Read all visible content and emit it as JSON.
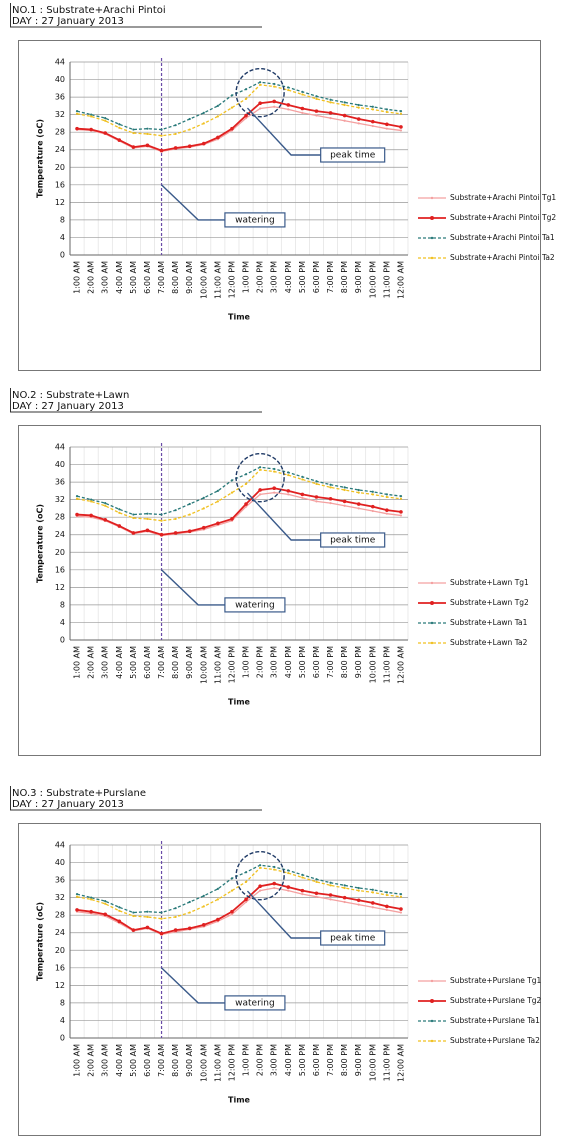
{
  "chart_data": [
    {
      "type": "line",
      "title": "NO.1 : Substrate+Arachi Pintoi",
      "subtitle": "DAY : 27 January 2013",
      "xlabel": "Time",
      "ylabel": "Temperature (oC)",
      "categories": [
        "1:00 AM",
        "2:00 AM",
        "3:00 AM",
        "4:00 AM",
        "5:00 AM",
        "6:00 AM",
        "7:00 AM",
        "8:00 AM",
        "9:00 AM",
        "10:00 AM",
        "11:00 AM",
        "12:00 PM",
        "1:00 PM",
        "2:00 PM",
        "3:00 PM",
        "4:00 PM",
        "5:00 PM",
        "6:00 PM",
        "7:00 PM",
        "8:00 PM",
        "9:00 PM",
        "10:00 PM",
        "11:00 PM",
        "12:00 AM"
      ],
      "series": [
        {
          "name": "Substrate+Arachi Pintoi Tg1",
          "color": "#f4a0a0",
          "style": "solid",
          "values": [
            28.6,
            28.4,
            27.6,
            26,
            24.4,
            24.8,
            23.6,
            24.2,
            24.6,
            25.2,
            26.4,
            28.4,
            31.2,
            33.4,
            33.8,
            33.2,
            32.4,
            31.8,
            31.2,
            30.6,
            30,
            29.4,
            28.8,
            28.4
          ]
        },
        {
          "name": "Substrate+Arachi Pintoi Tg2",
          "color": "#e02020",
          "style": "solid",
          "values": [
            28.8,
            28.6,
            27.8,
            26.2,
            24.6,
            25,
            23.8,
            24.4,
            24.8,
            25.4,
            26.8,
            28.8,
            31.8,
            34.6,
            35,
            34.2,
            33.4,
            32.8,
            32.4,
            31.8,
            31,
            30.4,
            29.8,
            29.2
          ]
        },
        {
          "name": "Substrate+Arachi Pintoi Ta1",
          "color": "#2a7a7a",
          "style": "dashed",
          "values": [
            32.8,
            32,
            31.2,
            29.8,
            28.6,
            28.8,
            28.6,
            29.6,
            31,
            32.4,
            34,
            36.4,
            37.8,
            39.4,
            39,
            38.2,
            37.2,
            36.2,
            35.4,
            34.8,
            34.2,
            33.8,
            33.2,
            32.8
          ]
        },
        {
          "name": "Substrate+Arachi Pintoi Ta2",
          "color": "#f0c020",
          "style": "dashed",
          "values": [
            32.2,
            31.6,
            30.6,
            29,
            27.8,
            27.6,
            27.2,
            27.6,
            28.6,
            30,
            31.6,
            33.6,
            35.6,
            38.8,
            38.4,
            37.6,
            36.6,
            35.6,
            34.8,
            34.2,
            33.6,
            33.2,
            32.6,
            32.2
          ]
        }
      ],
      "ylim": [
        0,
        44
      ],
      "yticks": [
        0,
        4,
        8,
        12,
        16,
        20,
        24,
        28,
        32,
        36,
        40,
        44
      ],
      "grid": true,
      "legend": "right",
      "annotations": [
        "peak time",
        "watering"
      ]
    },
    {
      "type": "line",
      "title": "NO.2 : Substrate+Lawn",
      "subtitle": "DAY : 27 January 2013",
      "xlabel": "Time",
      "ylabel": "Temperature (oC)",
      "categories": [
        "1:00 AM",
        "2:00 AM",
        "3:00 AM",
        "4:00 AM",
        "5:00 AM",
        "6:00 AM",
        "7:00 AM",
        "8:00 AM",
        "9:00 AM",
        "10:00 AM",
        "11:00 AM",
        "12:00 PM",
        "1:00 PM",
        "2:00 PM",
        "3:00 PM",
        "4:00 PM",
        "5:00 PM",
        "6:00 PM",
        "7:00 PM",
        "8:00 PM",
        "9:00 PM",
        "10:00 PM",
        "11:00 PM",
        "12:00 AM"
      ],
      "series": [
        {
          "name": "Substrate+Lawn Tg1",
          "color": "#f4a0a0",
          "style": "solid",
          "values": [
            28.2,
            28,
            27.2,
            25.8,
            24.2,
            24.8,
            23.8,
            24.2,
            24.6,
            25.2,
            26.2,
            27.2,
            30.4,
            33.2,
            33.6,
            33.2,
            32.4,
            31.6,
            31.2,
            30.6,
            30,
            29.4,
            28.8,
            28.4
          ]
        },
        {
          "name": "Substrate+Lawn Tg2",
          "color": "#e02020",
          "style": "solid",
          "values": [
            28.6,
            28.4,
            27.4,
            26,
            24.4,
            25,
            24,
            24.4,
            24.8,
            25.6,
            26.6,
            27.6,
            31,
            34.2,
            34.6,
            34,
            33.2,
            32.6,
            32.2,
            31.6,
            31,
            30.4,
            29.6,
            29.2
          ]
        },
        {
          "name": "Substrate+Lawn Ta1",
          "color": "#2a7a7a",
          "style": "dashed",
          "values": [
            32.8,
            32,
            31.2,
            29.8,
            28.6,
            28.8,
            28.6,
            29.6,
            31,
            32.4,
            34,
            36.4,
            37.8,
            39.4,
            39,
            38.2,
            37.2,
            36.2,
            35.4,
            34.8,
            34.2,
            33.8,
            33.2,
            32.8
          ]
        },
        {
          "name": "Substrate+Lawn Ta2",
          "color": "#f0c020",
          "style": "dashed",
          "values": [
            32.2,
            31.6,
            30.6,
            29,
            27.8,
            27.6,
            27.2,
            27.6,
            28.6,
            30,
            31.6,
            33.6,
            35.6,
            38.8,
            38.4,
            37.6,
            36.6,
            35.6,
            34.8,
            34.2,
            33.6,
            33.2,
            32.6,
            32.2
          ]
        }
      ],
      "ylim": [
        0,
        44
      ],
      "yticks": [
        0,
        4,
        8,
        12,
        16,
        20,
        24,
        28,
        32,
        36,
        40,
        44
      ],
      "grid": true,
      "legend": "right",
      "annotations": [
        "peak time",
        "watering"
      ]
    },
    {
      "type": "line",
      "title": "NO.3 : Substrate+Purslane",
      "subtitle": "DAY : 27 January 2013",
      "xlabel": "Time",
      "ylabel": "Temperature (oC)",
      "categories": [
        "1:00 AM",
        "2:00 AM",
        "3:00 AM",
        "4:00 AM",
        "5:00 AM",
        "6:00 AM",
        "7:00 AM",
        "8:00 AM",
        "9:00 AM",
        "10:00 AM",
        "11:00 AM",
        "12:00 PM",
        "1:00 PM",
        "2:00 PM",
        "3:00 PM",
        "4:00 PM",
        "5:00 PM",
        "6:00 PM",
        "7:00 PM",
        "8:00 PM",
        "9:00 PM",
        "10:00 PM",
        "11:00 PM",
        "12:00 AM"
      ],
      "series": [
        {
          "name": "Substrate+Purslane Tg1",
          "color": "#f4a0a0",
          "style": "solid",
          "values": [
            28.8,
            28.4,
            27.8,
            26.2,
            24.4,
            25,
            23.6,
            24.2,
            24.8,
            25.4,
            26.6,
            28.2,
            31,
            33.6,
            34.2,
            33.6,
            32.8,
            32.2,
            31.6,
            31,
            30.4,
            29.8,
            29.2,
            28.6
          ]
        },
        {
          "name": "Substrate+Purslane Tg2",
          "color": "#e02020",
          "style": "solid",
          "values": [
            29.2,
            28.8,
            28.2,
            26.6,
            24.6,
            25.2,
            23.8,
            24.6,
            25,
            25.8,
            27,
            28.8,
            31.6,
            34.6,
            35.2,
            34.4,
            33.6,
            33,
            32.6,
            32,
            31.4,
            30.8,
            30,
            29.4
          ]
        },
        {
          "name": "Substrate+Purslane Ta1",
          "color": "#2a7a7a",
          "style": "dashed",
          "values": [
            32.8,
            32,
            31.2,
            29.8,
            28.6,
            28.8,
            28.6,
            29.6,
            31,
            32.4,
            34,
            36.4,
            37.8,
            39.4,
            39,
            38.2,
            37.2,
            36.2,
            35.4,
            34.8,
            34.2,
            33.8,
            33.2,
            32.8
          ]
        },
        {
          "name": "Substrate+Purslane Ta2",
          "color": "#f0c020",
          "style": "dashed",
          "values": [
            32.2,
            31.6,
            30.6,
            29,
            27.8,
            27.6,
            27.2,
            27.6,
            28.6,
            30,
            31.6,
            33.6,
            35.6,
            38.8,
            38.4,
            37.6,
            36.6,
            35.6,
            34.8,
            34.2,
            33.6,
            33.2,
            32.6,
            32.2
          ]
        }
      ],
      "ylim": [
        0,
        44
      ],
      "yticks": [
        0,
        4,
        8,
        12,
        16,
        20,
        24,
        28,
        32,
        36,
        40,
        44
      ],
      "grid": true,
      "legend": "right",
      "annotations": [
        "peak time",
        "watering"
      ]
    }
  ]
}
